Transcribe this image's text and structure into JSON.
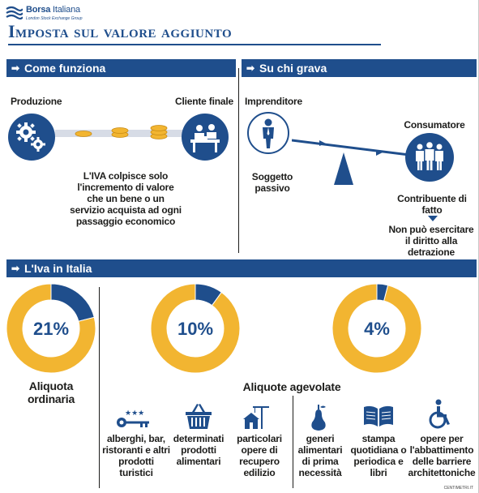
{
  "header": {
    "logo_name_bold": "Borsa",
    "logo_name_thin": " Italiana",
    "logo_sub": "London Stock Exchange Group",
    "title": "Imposta sul valore aggiunto"
  },
  "sections": {
    "how": "Come funziona",
    "who": "Su chi grava",
    "italy": "L'Iva in Italia"
  },
  "how": {
    "production": "Produzione",
    "final_client": "Cliente finale",
    "description": "L'IVA colpisce solo l'incremento di valore che un bene o un servizio acquista ad ogni passaggio economico"
  },
  "who": {
    "entrepreneur": "Imprenditore",
    "consumer": "Consumatore",
    "passive": "Soggetto passivo",
    "contributor": "Contribuente di fatto",
    "no_deduction": "Non può esercitare il diritto alla detrazione"
  },
  "italy": {
    "ordinary_label": "Aliquota ordinaria",
    "reduced_label": "Aliquote agevolate",
    "categories": [
      {
        "label": "alberghi, bar, ristoranti e altri prodotti turistici",
        "icon": "key-icon"
      },
      {
        "label": "determinati prodotti alimentari",
        "icon": "basket-icon"
      },
      {
        "label": "particolari opere di recupero edilizio",
        "icon": "construction-icon"
      },
      {
        "label": "generi alimentari di prima necessità",
        "icon": "pear-icon"
      },
      {
        "label": "stampa quotidiana o periodica e libri",
        "icon": "book-icon"
      },
      {
        "label": "opere per l'abbattimento delle barriere architettoniche",
        "icon": "wheelchair-icon"
      }
    ]
  },
  "chart_data": [
    {
      "type": "pie",
      "title": "Aliquota ordinaria",
      "values": [
        21,
        79
      ],
      "label": "21%"
    },
    {
      "type": "pie",
      "title": "",
      "values": [
        10,
        90
      ],
      "label": "10%"
    },
    {
      "type": "pie",
      "title": "",
      "values": [
        4,
        96
      ],
      "label": "4%"
    }
  ],
  "colors": {
    "blue": "#1f4e8c",
    "yellow": "#f2b531",
    "coin": "#f2b531"
  },
  "credit": "CENTIMETRI.IT"
}
